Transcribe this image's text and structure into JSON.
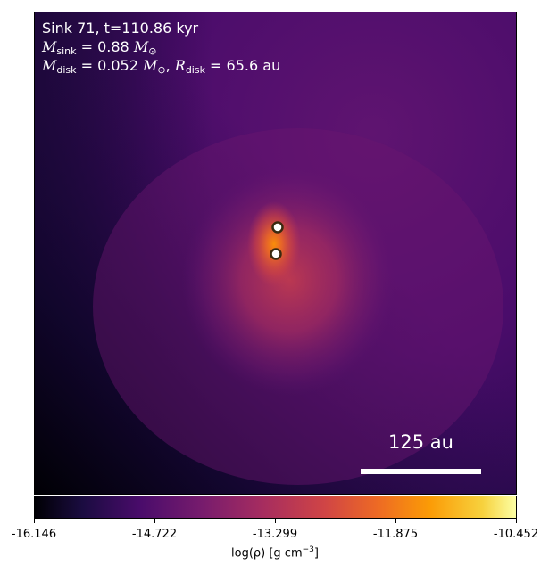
{
  "annotation": {
    "line1": "Sink 71, t=110.86 kyr",
    "msink_symbol": "M",
    "msink_sub": "sink",
    "msink_value": " = 0.88 ",
    "msun_symbol": "M",
    "msun_sub": "⊙",
    "mdisk_symbol": "M",
    "mdisk_sub": "disk",
    "mdisk_value": " = 0.052 ",
    "mdisk_msun_symbol": "M",
    "mdisk_msun_sub": "⊙",
    "sep": ", ",
    "rdisk_symbol": "R",
    "rdisk_sub": "disk",
    "rdisk_value": " = 65.6 au"
  },
  "scalebar": {
    "label": "125 au"
  },
  "colorbar": {
    "colormap": "inferno",
    "ticks": [
      "-16.146",
      "-14.722",
      "-13.299",
      "-11.875",
      "-10.452"
    ],
    "label_main": "log(ρ) [g cm",
    "label_exp": "−3",
    "label_close": "]"
  },
  "colors": {
    "frame": "#000000",
    "text_on_image": "#ffffff",
    "sink_ring": "#3a2a10",
    "sink_fill": "#ffffff"
  }
}
